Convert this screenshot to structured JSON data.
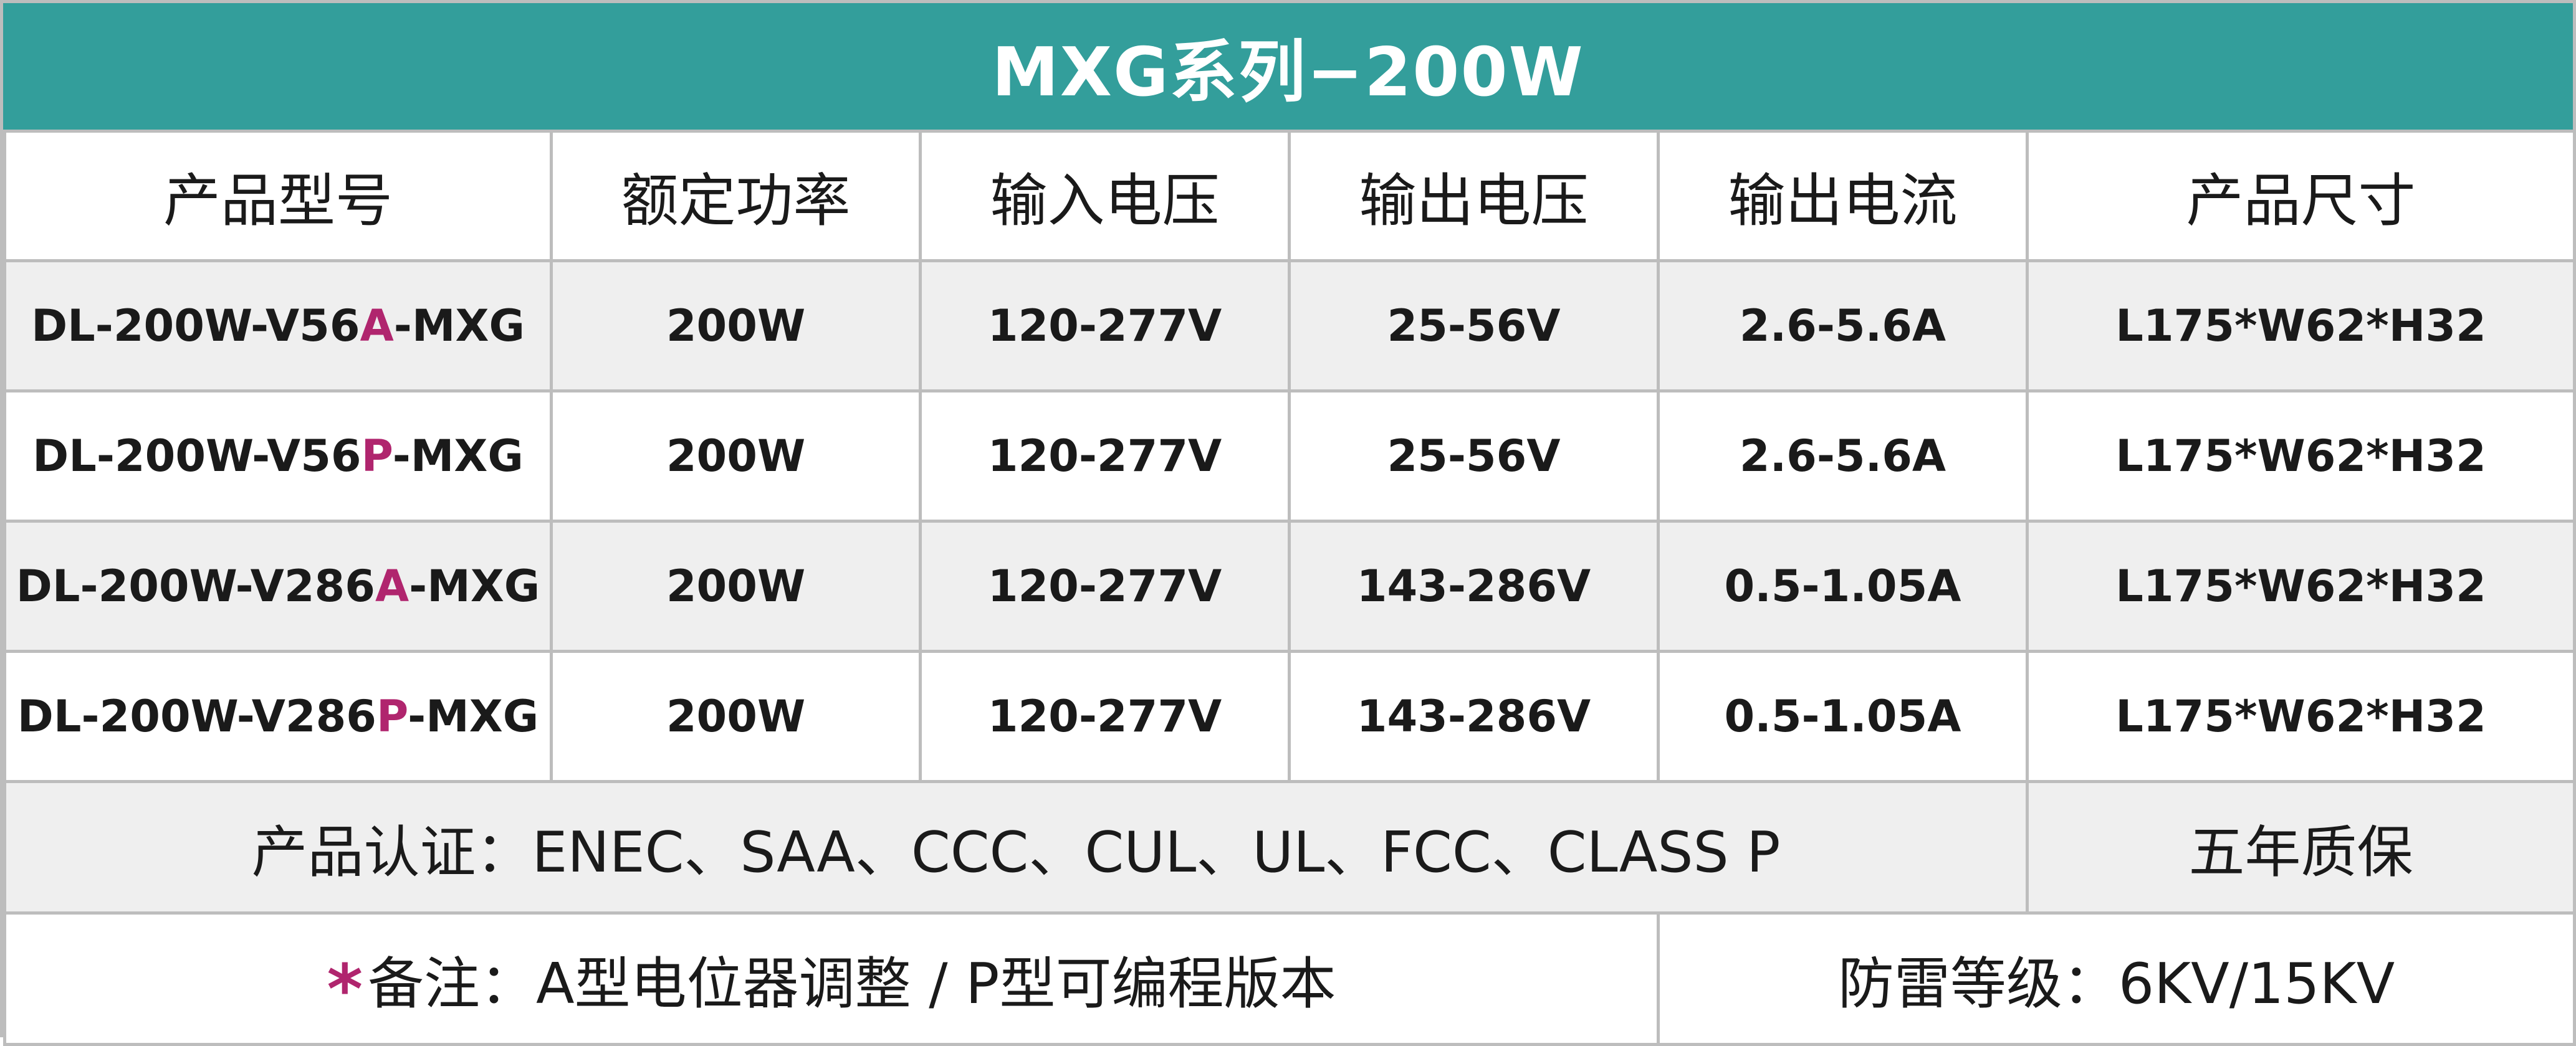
{
  "title": "MXG系列−200W",
  "headers": [
    "产品型号",
    "额定功率",
    "输入电压",
    "输出电压",
    "输出电流",
    "产品尺寸"
  ],
  "rows": [
    {
      "model_prefix": "DL-200W-V56",
      "model_letter": "A",
      "model_suffix": "-MXG",
      "power": "200W",
      "input_voltage": "120-277V",
      "output_voltage": "25-56V",
      "output_current": "2.6-5.6A",
      "size": "L175*W62*H32"
    },
    {
      "model_prefix": "DL-200W-V56",
      "model_letter": "P",
      "model_suffix": "-MXG",
      "power": "200W",
      "input_voltage": "120-277V",
      "output_voltage": "25-56V",
      "output_current": "2.6-5.6A",
      "size": "L175*W62*H32"
    },
    {
      "model_prefix": "DL-200W-V286",
      "model_letter": "A",
      "model_suffix": "-MXG",
      "power": "200W",
      "input_voltage": "120-277V",
      "output_voltage": "143-286V",
      "output_current": "0.5-1.05A",
      "size": "L175*W62*H32"
    },
    {
      "model_prefix": "DL-200W-V286",
      "model_letter": "P",
      "model_suffix": "-MXG",
      "power": "200W",
      "input_voltage": "120-277V",
      "output_voltage": "143-286V",
      "output_current": "0.5-1.05A",
      "size": "L175*W62*H32"
    }
  ],
  "certification": "产品认证：ENEC、SAA、CCC、CUL、UL、FCC、CLASS P",
  "warranty": "五年质保",
  "note_star": "*",
  "note": "备注：A型电位器调整 /  P型可编程版本",
  "surge": "防雷等级：6KV/15KV",
  "colors": {
    "header_bg": "#339e9b",
    "highlight": "#b0256e",
    "row_alt_bg": "#efefef",
    "border": "#bdbdbd"
  }
}
